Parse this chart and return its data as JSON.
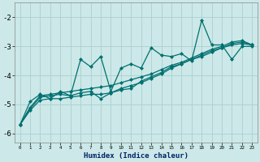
{
  "xlabel": "Humidex (Indice chaleur)",
  "xlim": [
    -0.5,
    23.5
  ],
  "ylim": [
    -6.3,
    -1.5
  ],
  "yticks": [
    -6,
    -5,
    -4,
    -3,
    -2
  ],
  "xticks": [
    0,
    1,
    2,
    3,
    4,
    5,
    6,
    7,
    8,
    9,
    10,
    11,
    12,
    13,
    14,
    15,
    16,
    17,
    18,
    19,
    20,
    21,
    22,
    23
  ],
  "bg_color": "#cce8e8",
  "grid_color": "#aad0d0",
  "line_color": "#007070",
  "line_width": 0.9,
  "marker": "D",
  "marker_size": 2.0,
  "x": [
    0,
    1,
    2,
    3,
    4,
    5,
    6,
    7,
    8,
    9,
    10,
    11,
    12,
    13,
    14,
    15,
    16,
    17,
    18,
    19,
    20,
    21,
    22,
    23
  ],
  "series1": [
    -5.7,
    -4.9,
    -4.65,
    -4.8,
    -4.55,
    -4.7,
    -3.45,
    -3.7,
    -3.35,
    -4.55,
    -3.75,
    -3.6,
    -3.75,
    -3.05,
    -3.3,
    -3.35,
    -3.25,
    -3.5,
    -2.1,
    -2.95,
    -2.95,
    -3.45,
    -3.0,
    -3.0
  ],
  "series2": [
    -5.7,
    -5.15,
    -4.75,
    -4.7,
    -4.65,
    -4.7,
    -4.6,
    -4.55,
    -4.8,
    -4.6,
    -4.5,
    -4.45,
    -4.2,
    -4.05,
    -3.9,
    -3.7,
    -3.6,
    -3.45,
    -3.35,
    -3.2,
    -3.05,
    -2.95,
    -2.9,
    -2.95
  ],
  "series3": [
    -5.7,
    -5.2,
    -4.85,
    -4.8,
    -4.8,
    -4.75,
    -4.7,
    -4.65,
    -4.65,
    -4.6,
    -4.45,
    -4.35,
    -4.25,
    -4.1,
    -3.95,
    -3.75,
    -3.6,
    -3.45,
    -3.3,
    -3.15,
    -3.05,
    -2.9,
    -2.85,
    -2.95
  ],
  "series4": [
    -5.7,
    -5.1,
    -4.7,
    -4.65,
    -4.6,
    -4.55,
    -4.5,
    -4.45,
    -4.4,
    -4.35,
    -4.25,
    -4.15,
    -4.05,
    -3.95,
    -3.8,
    -3.65,
    -3.55,
    -3.4,
    -3.25,
    -3.1,
    -3.0,
    -2.85,
    -2.8,
    -2.95
  ]
}
